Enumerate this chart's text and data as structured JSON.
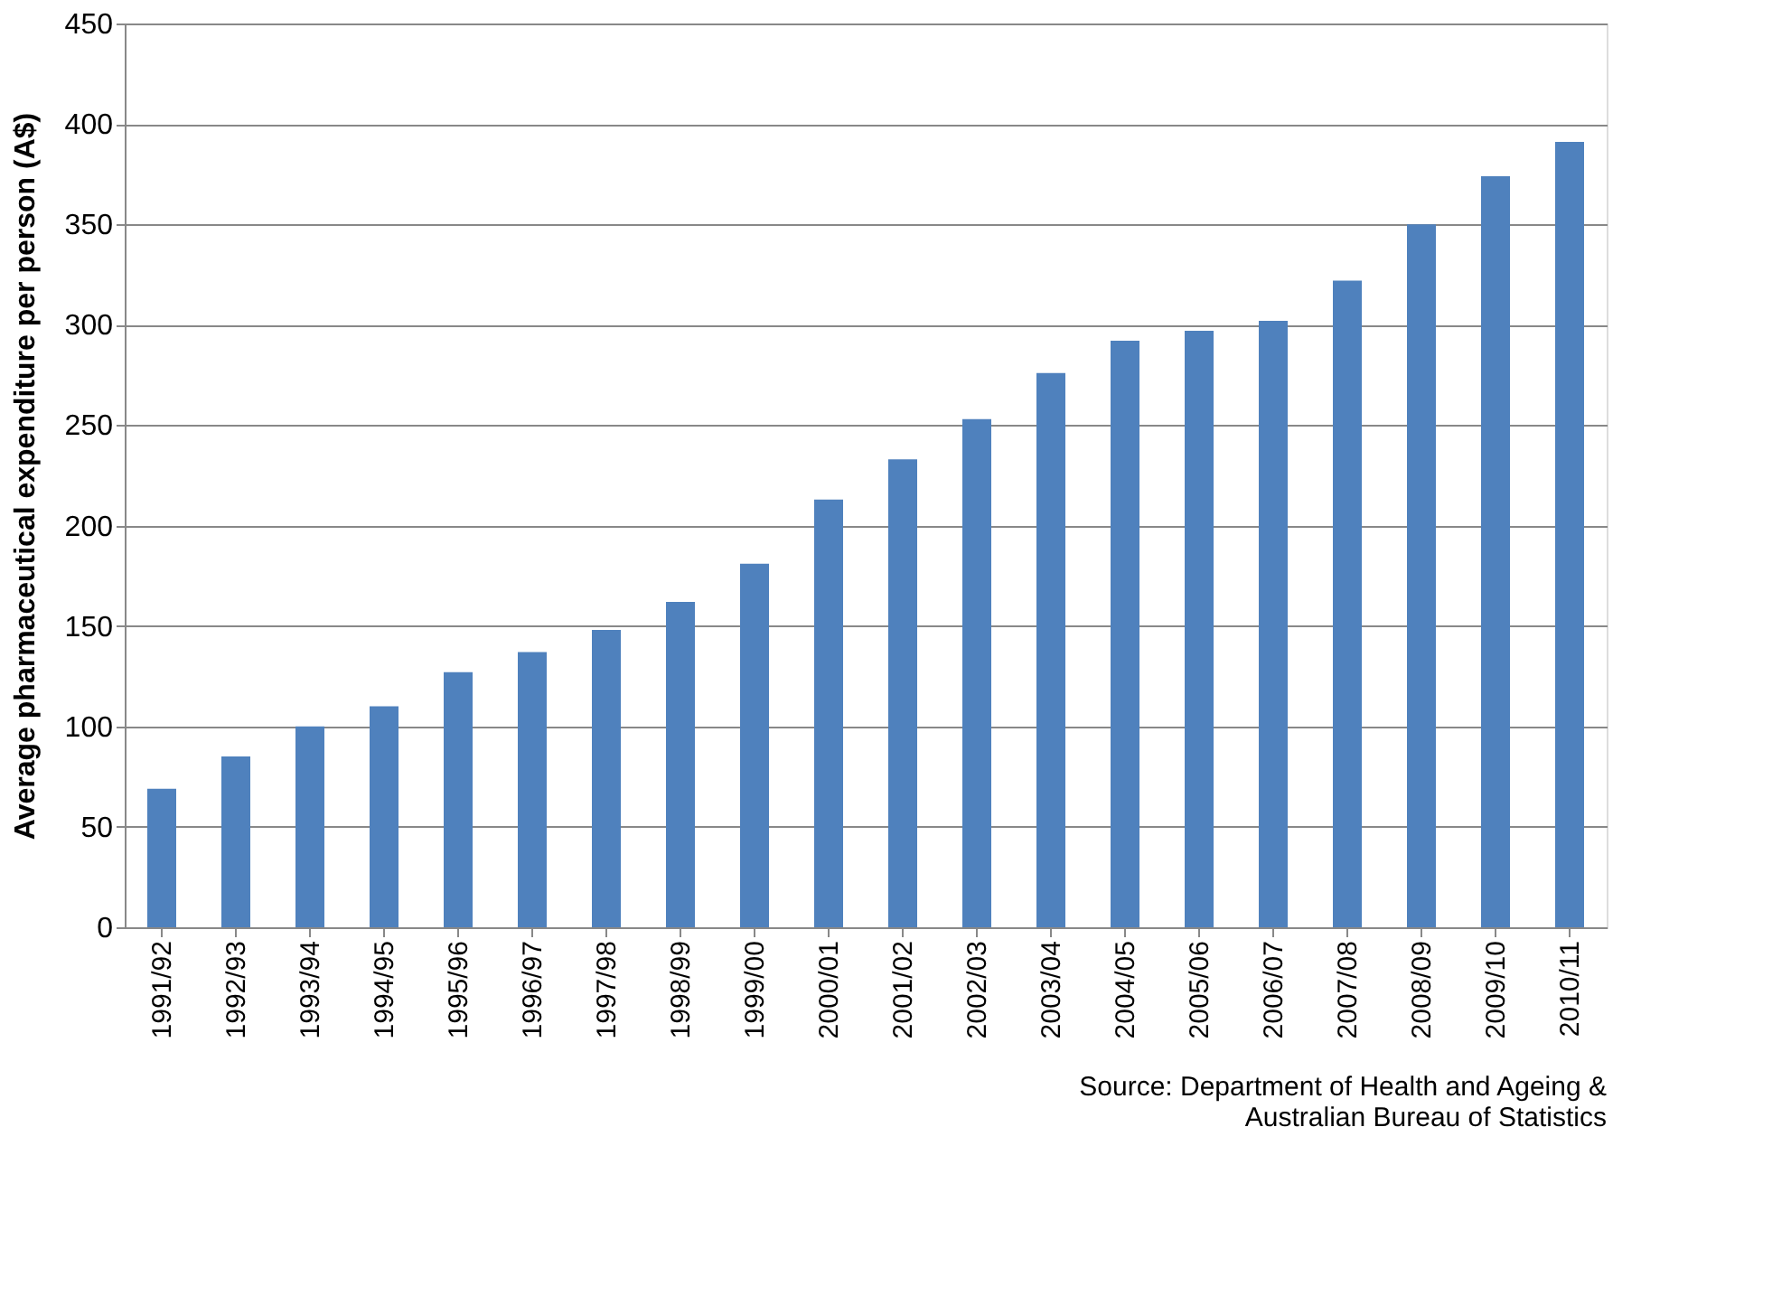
{
  "chart_data": {
    "type": "bar",
    "ylabel": "Average pharmaceutical  expenditure per person (A$)",
    "categories": [
      "1991/92",
      "1992/93",
      "1993/94",
      "1994/95",
      "1995/96",
      "1996/97",
      "1997/98",
      "1998/99",
      "1999/00",
      "2000/01",
      "2001/02",
      "2002/03",
      "2003/04",
      "2004/05",
      "2005/06",
      "2006/07",
      "2007/08",
      "2008/09",
      "2009/10",
      "2010/11"
    ],
    "values": [
      69,
      85,
      100,
      110,
      127,
      137,
      148,
      162,
      181,
      213,
      233,
      253,
      276,
      292,
      297,
      302,
      322,
      350,
      374,
      391
    ],
    "color": "#4f81bd",
    "ylim": [
      0,
      450
    ],
    "yticks": [
      0,
      50,
      100,
      150,
      200,
      250,
      300,
      350,
      400,
      450
    ],
    "grid": "y",
    "annotations": [
      "Source: Department of Health and Ageing &",
      "Australian Bureau of Statistics"
    ]
  }
}
